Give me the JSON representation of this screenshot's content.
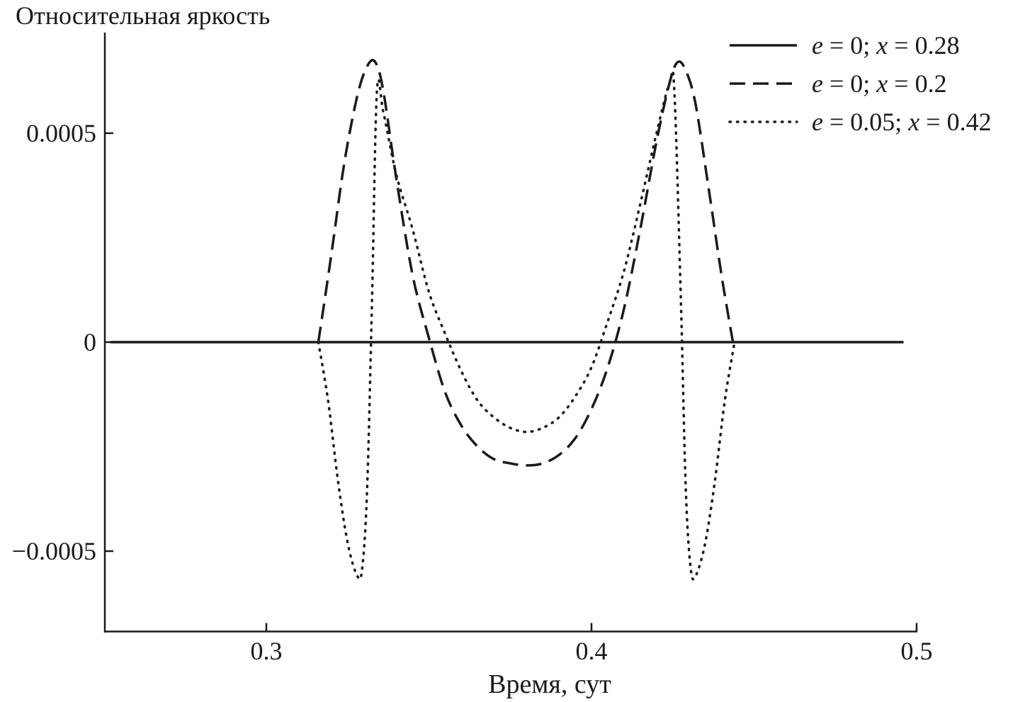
{
  "chart_data": {
    "type": "line",
    "title": "Относительная яркость",
    "xlabel": "Время, сут",
    "ylabel": "",
    "xlim": [
      0.25,
      0.5
    ],
    "ylim": [
      -0.00068,
      0.00077
    ],
    "xticks": [
      0.3,
      0.4,
      0.5
    ],
    "xtick_labels": [
      "0.3",
      "0.4",
      "0.5"
    ],
    "yticks": [
      0.0005,
      0,
      -0.0005
    ],
    "ytick_labels": [
      "0.0005",
      "0",
      "−0.0005"
    ],
    "grid": false,
    "legend_position": "top-right",
    "series": [
      {
        "name": "e = 0; x = 0.28",
        "style": "solid",
        "x": [
          0.252,
          0.496
        ],
        "y": [
          0,
          0
        ]
      },
      {
        "name": "e = 0; x = 0.2",
        "style": "dashed",
        "x": [
          0.316,
          0.32,
          0.324,
          0.328,
          0.331,
          0.3335,
          0.336,
          0.34,
          0.345,
          0.35,
          0.355,
          0.36,
          0.365,
          0.37,
          0.375,
          0.38,
          0.385,
          0.39,
          0.395,
          0.4,
          0.405,
          0.41,
          0.415,
          0.42,
          0.424,
          0.4265,
          0.429,
          0.432,
          0.436,
          0.44,
          0.4435
        ],
        "y": [
          0,
          0.00021,
          0.00043,
          0.00059,
          0.00066,
          0.00067,
          0.0006,
          0.00039,
          0.00016,
          1e-05,
          -0.00012,
          -0.0002,
          -0.00025,
          -0.00028,
          -0.00029,
          -0.000295,
          -0.00029,
          -0.00027,
          -0.00023,
          -0.00016,
          -6e-05,
          8e-05,
          0.00027,
          0.00048,
          0.00062,
          0.00067,
          0.00065,
          0.00057,
          0.00037,
          0.00016,
          0
        ]
      },
      {
        "name": "e = 0.05; x = 0.42",
        "style": "dotted",
        "x": [
          0.316,
          0.319,
          0.322,
          0.325,
          0.328,
          0.3295,
          0.331,
          0.3325,
          0.334,
          0.336,
          0.34,
          0.345,
          0.35,
          0.355,
          0.36,
          0.365,
          0.37,
          0.375,
          0.38,
          0.385,
          0.39,
          0.395,
          0.4,
          0.405,
          0.41,
          0.415,
          0.42,
          0.424,
          0.4255,
          0.4275,
          0.429,
          0.4305,
          0.432,
          0.435,
          0.438,
          0.441,
          0.444
        ],
        "y": [
          0,
          -0.00014,
          -0.00033,
          -0.00048,
          -0.00056,
          -0.00054,
          -0.00035,
          0.0001,
          0.0006,
          0.00055,
          0.0004,
          0.00027,
          0.00012,
          2e-05,
          -7e-05,
          -0.00014,
          -0.00018,
          -0.000205,
          -0.000215,
          -0.000205,
          -0.00018,
          -0.00013,
          -6e-05,
          5e-05,
          0.00017,
          0.00033,
          0.0005,
          0.00062,
          0.0006,
          0.0001,
          -0.00035,
          -0.00054,
          -0.00056,
          -0.00048,
          -0.00033,
          -0.00014,
          0
        ]
      }
    ]
  }
}
